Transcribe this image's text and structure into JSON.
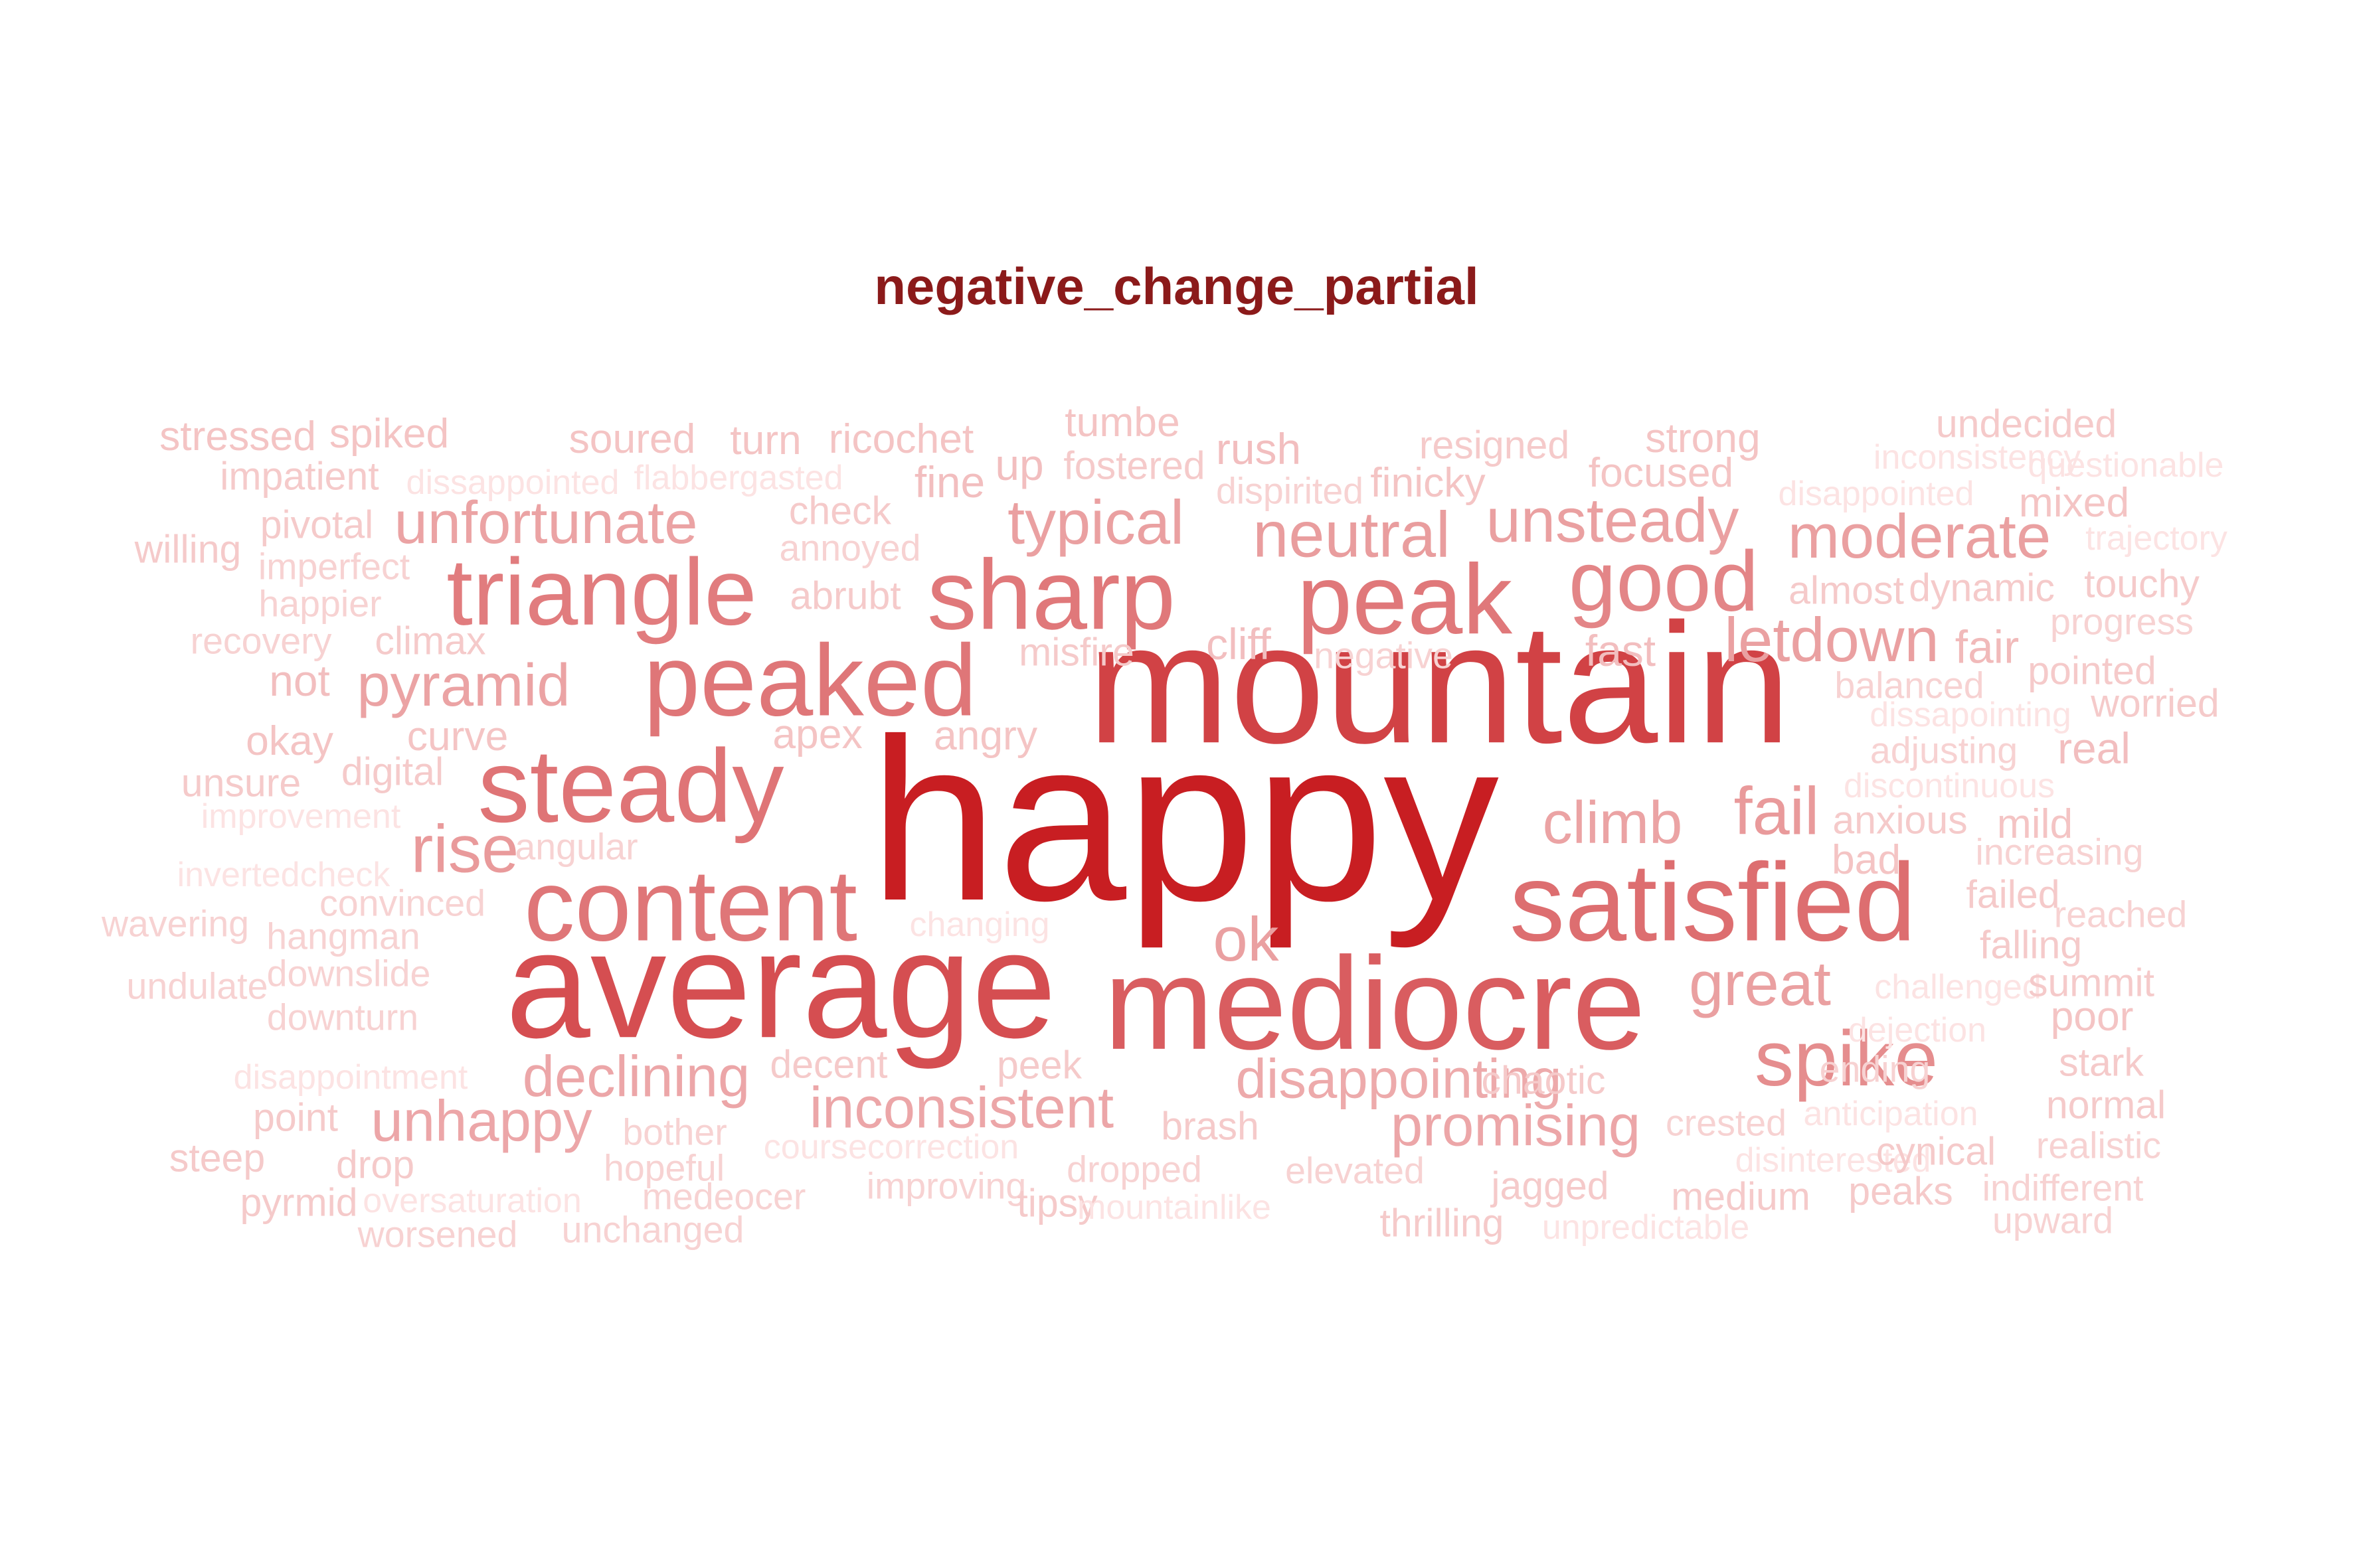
{
  "chart_data": {
    "type": "wordcloud",
    "title": "negative_change_partial",
    "colors": {
      "title": "#8B1A1A",
      "max": "#C81E22",
      "min": "#FCE3E3"
    },
    "words": [
      {
        "text": "happy",
        "value": 100
      },
      {
        "text": "mountain",
        "value": 74
      },
      {
        "text": "average",
        "value": 66
      },
      {
        "text": "mediocre",
        "value": 57
      },
      {
        "text": "satisfied",
        "value": 48
      },
      {
        "text": "content",
        "value": 44
      },
      {
        "text": "steady",
        "value": 45
      },
      {
        "text": "peaked",
        "value": 44
      },
      {
        "text": "sharp",
        "value": 43
      },
      {
        "text": "peak",
        "value": 43
      },
      {
        "text": "triangle",
        "value": 41
      },
      {
        "text": "good",
        "value": 37
      },
      {
        "text": "spike",
        "value": 34
      },
      {
        "text": "rise",
        "value": 29
      },
      {
        "text": "fail",
        "value": 29
      },
      {
        "text": "neutral",
        "value": 28
      },
      {
        "text": "moderate",
        "value": 27
      },
      {
        "text": "unsteady",
        "value": 27
      },
      {
        "text": "typical",
        "value": 27
      },
      {
        "text": "letdown",
        "value": 27
      },
      {
        "text": "great",
        "value": 27
      },
      {
        "text": "unfortunate",
        "value": 26
      },
      {
        "text": "pyramid",
        "value": 26
      },
      {
        "text": "climb",
        "value": 26
      },
      {
        "text": "ok",
        "value": 27
      },
      {
        "text": "declining",
        "value": 25
      },
      {
        "text": "disappointing",
        "value": 24
      },
      {
        "text": "inconsistent",
        "value": 25
      },
      {
        "text": "unhappy",
        "value": 25
      },
      {
        "text": "promising",
        "value": 25
      },
      {
        "text": "fair",
        "value": 20
      },
      {
        "text": "real",
        "value": 19
      },
      {
        "text": "stressed",
        "value": 18
      },
      {
        "text": "spiked",
        "value": 18
      },
      {
        "text": "soured",
        "value": 18
      },
      {
        "text": "turn",
        "value": 18
      },
      {
        "text": "ricochet",
        "value": 18
      },
      {
        "text": "tumbe",
        "value": 18
      },
      {
        "text": "fostered",
        "value": 17
      },
      {
        "text": "rush",
        "value": 19
      },
      {
        "text": "resigned",
        "value": 17
      },
      {
        "text": "strong",
        "value": 18
      },
      {
        "text": "undecided",
        "value": 17
      },
      {
        "text": "impatient",
        "value": 17
      },
      {
        "text": "dissappointed",
        "value": 15
      },
      {
        "text": "flabbergasted",
        "value": 15
      },
      {
        "text": "check",
        "value": 17
      },
      {
        "text": "fine",
        "value": 19
      },
      {
        "text": "up",
        "value": 19
      },
      {
        "text": "dispirited",
        "value": 16
      },
      {
        "text": "finicky",
        "value": 18
      },
      {
        "text": "focused",
        "value": 18
      },
      {
        "text": "inconsistency",
        "value": 15
      },
      {
        "text": "questionable",
        "value": 15
      },
      {
        "text": "disappointed",
        "value": 15
      },
      {
        "text": "mixed",
        "value": 18
      },
      {
        "text": "willing",
        "value": 17
      },
      {
        "text": "pivotal",
        "value": 17
      },
      {
        "text": "annoyed",
        "value": 16
      },
      {
        "text": "trajectory",
        "value": 15
      },
      {
        "text": "imperfect",
        "value": 16
      },
      {
        "text": "abrubt",
        "value": 17
      },
      {
        "text": "almost",
        "value": 17
      },
      {
        "text": "dynamic",
        "value": 17
      },
      {
        "text": "touchy",
        "value": 17
      },
      {
        "text": "happier",
        "value": 16
      },
      {
        "text": "progress",
        "value": 16
      },
      {
        "text": "recovery",
        "value": 16
      },
      {
        "text": "climax",
        "value": 17
      },
      {
        "text": "misfire",
        "value": 17
      },
      {
        "text": "cliff",
        "value": 19
      },
      {
        "text": "negative",
        "value": 16
      },
      {
        "text": "fast",
        "value": 19
      },
      {
        "text": "pointed",
        "value": 17
      },
      {
        "text": "not",
        "value": 19
      },
      {
        "text": "balanced",
        "value": 16
      },
      {
        "text": "dissapointing",
        "value": 15
      },
      {
        "text": "worried",
        "value": 17
      },
      {
        "text": "okay",
        "value": 18
      },
      {
        "text": "curve",
        "value": 18
      },
      {
        "text": "apex",
        "value": 18
      },
      {
        "text": "angry",
        "value": 18
      },
      {
        "text": "adjusting",
        "value": 16
      },
      {
        "text": "unsure",
        "value": 17
      },
      {
        "text": "digital",
        "value": 17
      },
      {
        "text": "discontinuous",
        "value": 15
      },
      {
        "text": "improvement",
        "value": 15
      },
      {
        "text": "anxious",
        "value": 17
      },
      {
        "text": "mild",
        "value": 18
      },
      {
        "text": "angular",
        "value": 16
      },
      {
        "text": "bad",
        "value": 18
      },
      {
        "text": "increasing",
        "value": 16
      },
      {
        "text": "invertedcheck",
        "value": 15
      },
      {
        "text": "convinced",
        "value": 16
      },
      {
        "text": "failed",
        "value": 17
      },
      {
        "text": "reached",
        "value": 16
      },
      {
        "text": "wavering",
        "value": 16
      },
      {
        "text": "hangman",
        "value": 16
      },
      {
        "text": "changing",
        "value": 15
      },
      {
        "text": "falling",
        "value": 17
      },
      {
        "text": "downslide",
        "value": 16
      },
      {
        "text": "undulate",
        "value": 16
      },
      {
        "text": "challenged",
        "value": 15
      },
      {
        "text": "summit",
        "value": 17
      },
      {
        "text": "downturn",
        "value": 16
      },
      {
        "text": "dejection",
        "value": 15
      },
      {
        "text": "poor",
        "value": 18
      },
      {
        "text": "disappointment",
        "value": 15
      },
      {
        "text": "decent",
        "value": 17
      },
      {
        "text": "peek",
        "value": 17
      },
      {
        "text": "chaotic",
        "value": 17
      },
      {
        "text": "ending",
        "value": 16
      },
      {
        "text": "stark",
        "value": 17
      },
      {
        "text": "point",
        "value": 17
      },
      {
        "text": "bother",
        "value": 16
      },
      {
        "text": "brash",
        "value": 17
      },
      {
        "text": "crested",
        "value": 16
      },
      {
        "text": "anticipation",
        "value": 15
      },
      {
        "text": "normal",
        "value": 17
      },
      {
        "text": "steep",
        "value": 17
      },
      {
        "text": "drop",
        "value": 17
      },
      {
        "text": "coursecorrection",
        "value": 15
      },
      {
        "text": "hopeful",
        "value": 16
      },
      {
        "text": "dropped",
        "value": 16
      },
      {
        "text": "elevated",
        "value": 16
      },
      {
        "text": "disinterested",
        "value": 15
      },
      {
        "text": "cynical",
        "value": 17
      },
      {
        "text": "realistic",
        "value": 16
      },
      {
        "text": "pyrmid",
        "value": 17
      },
      {
        "text": "oversaturation",
        "value": 15
      },
      {
        "text": "medeocer",
        "value": 16
      },
      {
        "text": "improving",
        "value": 16
      },
      {
        "text": "tipsy",
        "value": 17
      },
      {
        "text": "mountainlike",
        "value": 15
      },
      {
        "text": "jagged",
        "value": 17
      },
      {
        "text": "medium",
        "value": 17
      },
      {
        "text": "peaks",
        "value": 17
      },
      {
        "text": "indifferent",
        "value": 16
      },
      {
        "text": "worsened",
        "value": 16
      },
      {
        "text": "unchanged",
        "value": 16
      },
      {
        "text": "thrilling",
        "value": 17
      },
      {
        "text": "unpredictable",
        "value": 15
      },
      {
        "text": "upward",
        "value": 16
      }
    ]
  }
}
